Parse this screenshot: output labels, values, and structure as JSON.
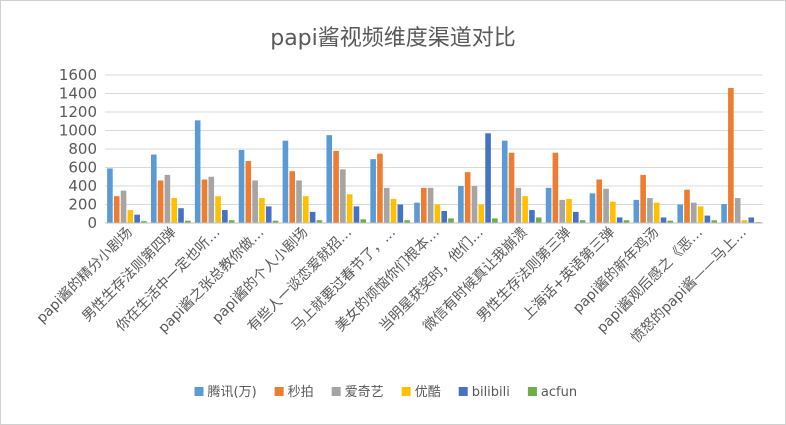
{
  "chart_data": {
    "type": "bar",
    "title": "papi酱视频维度渠道对比",
    "xlabel": "",
    "ylabel": "",
    "ylim": [
      0,
      1600
    ],
    "yticks": [
      0,
      200,
      400,
      600,
      800,
      1000,
      1200,
      1400,
      1600
    ],
    "grid": true,
    "legend_position": "bottom",
    "categories": [
      "papi酱的精分小剧场",
      "男性生存法则第四弹",
      "你在生活中一定也听…",
      "papi酱之张总教你做…",
      "papi酱的个人小剧场",
      "有些人一谈恋爱就招…",
      "马上就要过春节了，…",
      "美女的烦恼你们根本…",
      "当明星获奖时，他们…",
      "微信有时候真让我崩溃",
      "男性生存法则第三弹",
      "上海话+英语第三弹",
      "papi酱的新年鸡汤",
      "papi酱观后感之《恶…",
      "愤怒的papi酱——马上…"
    ],
    "series": [
      {
        "name": "腾讯(万)",
        "color": "#5b9bd5",
        "values": [
          590,
          740,
          1110,
          790,
          890,
          950,
          690,
          220,
          400,
          890,
          380,
          320,
          250,
          200,
          205
        ]
      },
      {
        "name": "秒拍",
        "color": "#ed7d31",
        "values": [
          290,
          460,
          470,
          670,
          560,
          780,
          750,
          380,
          550,
          760,
          760,
          470,
          520,
          360,
          1460
        ]
      },
      {
        "name": "爱奇艺",
        "color": "#a5a5a5",
        "values": [
          350,
          520,
          500,
          460,
          460,
          580,
          380,
          380,
          400,
          380,
          250,
          370,
          270,
          220,
          270
        ]
      },
      {
        "name": "优酷",
        "color": "#ffc000",
        "values": [
          140,
          270,
          290,
          270,
          290,
          310,
          260,
          200,
          200,
          290,
          260,
          230,
          220,
          180,
          30
        ]
      },
      {
        "name": "bilibili",
        "color": "#4472c4",
        "values": [
          90,
          160,
          140,
          180,
          120,
          180,
          200,
          130,
          970,
          140,
          120,
          60,
          60,
          80,
          60
        ]
      },
      {
        "name": "acfun",
        "color": "#70ad47",
        "values": [
          20,
          25,
          30,
          25,
          30,
          40,
          30,
          50,
          50,
          60,
          30,
          30,
          25,
          30,
          10
        ]
      }
    ]
  }
}
